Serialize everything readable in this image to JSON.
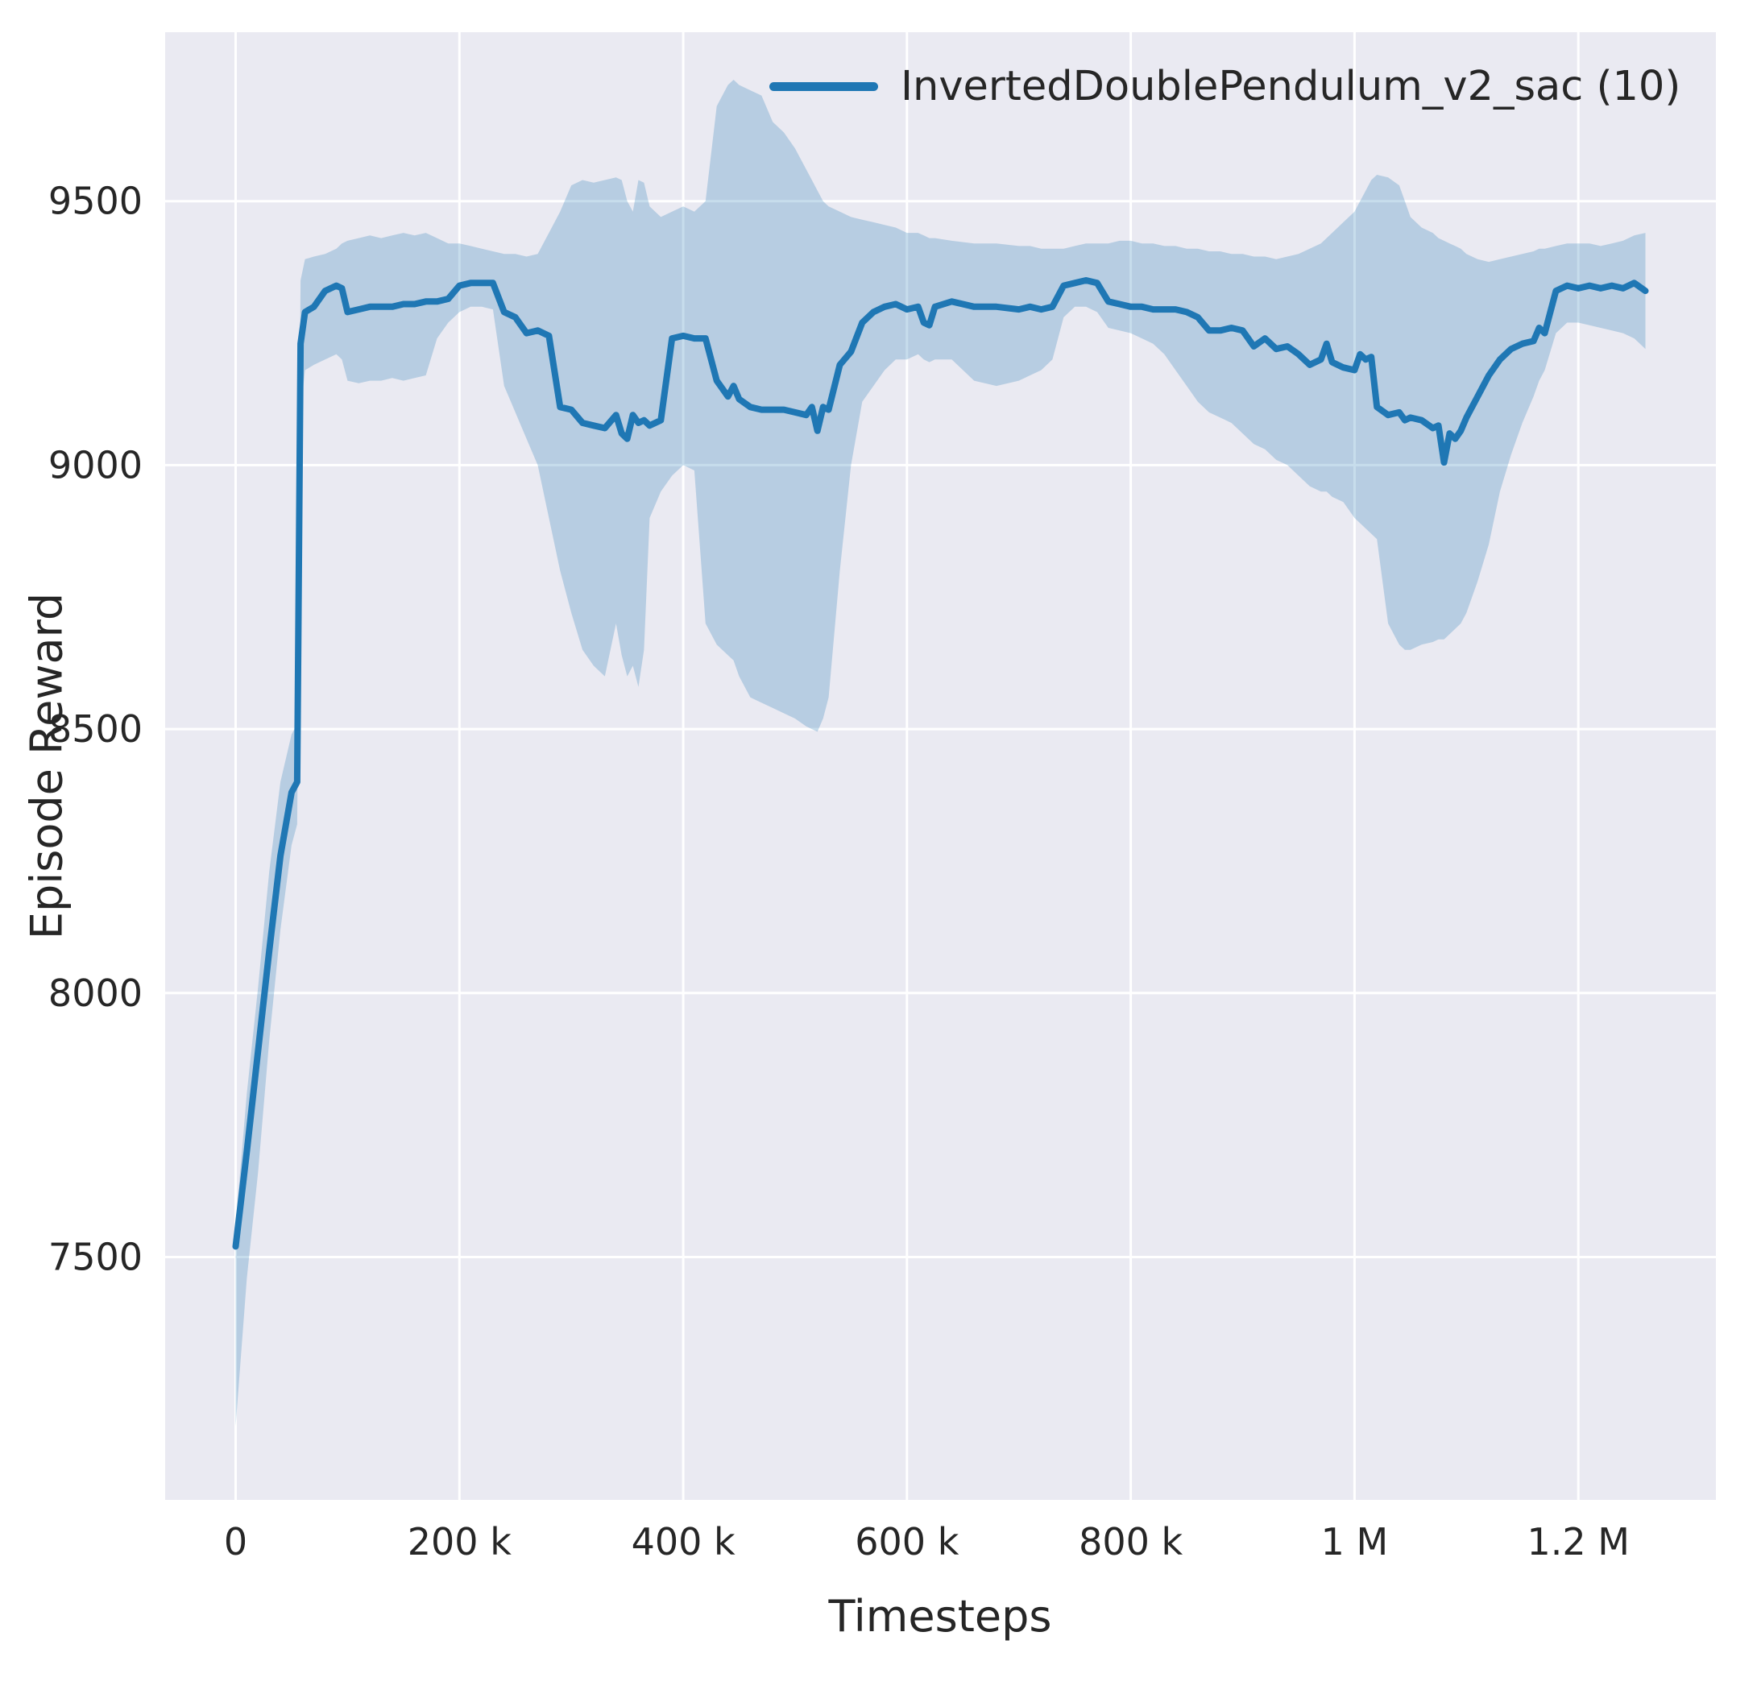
{
  "chart_data": {
    "type": "line",
    "title": "",
    "xlabel": "Timesteps",
    "ylabel": "Episode Reward",
    "legend_position": "upper right",
    "grid": true,
    "xlim": [
      -63000,
      1323000
    ],
    "ylim": [
      7040,
      9820
    ],
    "xticks": [
      {
        "value": 0,
        "label": "0"
      },
      {
        "value": 200000,
        "label": "200 k"
      },
      {
        "value": 400000,
        "label": "400 k"
      },
      {
        "value": 600000,
        "label": "600 k"
      },
      {
        "value": 800000,
        "label": "800 k"
      },
      {
        "value": 1000000,
        "label": "1 M"
      },
      {
        "value": 1200000,
        "label": "1.2 M"
      }
    ],
    "yticks": [
      {
        "value": 7500,
        "label": "7500"
      },
      {
        "value": 8000,
        "label": "8000"
      },
      {
        "value": 8500,
        "label": "8500"
      },
      {
        "value": 9000,
        "label": "9000"
      },
      {
        "value": 9500,
        "label": "9500"
      }
    ],
    "colors": {
      "line": "#1f77b4",
      "band": "#1f77b4",
      "band_opacity": 0.25,
      "plot_bg": "#eaeaf2",
      "grid": "#ffffff",
      "tick_text": "#262626",
      "label_text": "#262626",
      "page_bg": "#ffffff"
    },
    "series": [
      {
        "name": "InvertedDoublePendulum_v2_sac (10)",
        "color": "#1f77b4",
        "point_format": [
          "x_timesteps",
          "mean_reward",
          "band_lower",
          "band_upper"
        ],
        "points": [
          [
            0,
            7520,
            7180,
            7560
          ],
          [
            10000,
            7700,
            7460,
            7810
          ],
          [
            20000,
            7890,
            7660,
            8010
          ],
          [
            30000,
            8080,
            7910,
            8230
          ],
          [
            40000,
            8260,
            8120,
            8400
          ],
          [
            50000,
            8380,
            8280,
            8490
          ],
          [
            55000,
            8400,
            8320,
            8510
          ],
          [
            58000,
            9230,
            9100,
            9350
          ],
          [
            62000,
            9290,
            9180,
            9390
          ],
          [
            70000,
            9300,
            9190,
            9395
          ],
          [
            80000,
            9330,
            9200,
            9400
          ],
          [
            90000,
            9340,
            9210,
            9410
          ],
          [
            95000,
            9335,
            9200,
            9420
          ],
          [
            100000,
            9290,
            9160,
            9425
          ],
          [
            110000,
            9295,
            9155,
            9430
          ],
          [
            120000,
            9300,
            9160,
            9435
          ],
          [
            130000,
            9300,
            9160,
            9430
          ],
          [
            140000,
            9300,
            9165,
            9435
          ],
          [
            150000,
            9305,
            9160,
            9440
          ],
          [
            160000,
            9305,
            9165,
            9435
          ],
          [
            170000,
            9310,
            9170,
            9440
          ],
          [
            180000,
            9310,
            9240,
            9430
          ],
          [
            190000,
            9315,
            9270,
            9420
          ],
          [
            200000,
            9340,
            9290,
            9420
          ],
          [
            210000,
            9345,
            9300,
            9415
          ],
          [
            220000,
            9345,
            9300,
            9410
          ],
          [
            230000,
            9345,
            9295,
            9405
          ],
          [
            240000,
            9290,
            9150,
            9400
          ],
          [
            250000,
            9280,
            9100,
            9400
          ],
          [
            260000,
            9250,
            9050,
            9395
          ],
          [
            270000,
            9255,
            9000,
            9400
          ],
          [
            280000,
            9245,
            8900,
            9440
          ],
          [
            290000,
            9110,
            8800,
            9480
          ],
          [
            300000,
            9105,
            8720,
            9530
          ],
          [
            310000,
            9080,
            8650,
            9540
          ],
          [
            320000,
            9075,
            8620,
            9535
          ],
          [
            330000,
            9070,
            8600,
            9540
          ],
          [
            340000,
            9095,
            8700,
            9545
          ],
          [
            345000,
            9060,
            8640,
            9540
          ],
          [
            350000,
            9050,
            8600,
            9500
          ],
          [
            355000,
            9095,
            8620,
            9480
          ],
          [
            360000,
            9080,
            8580,
            9540
          ],
          [
            365000,
            9085,
            8650,
            9535
          ],
          [
            370000,
            9075,
            8900,
            9490
          ],
          [
            380000,
            9085,
            8950,
            9470
          ],
          [
            390000,
            9240,
            8980,
            9480
          ],
          [
            400000,
            9245,
            9000,
            9490
          ],
          [
            410000,
            9240,
            8990,
            9480
          ],
          [
            420000,
            9240,
            8700,
            9500
          ],
          [
            430000,
            9160,
            8660,
            9680
          ],
          [
            440000,
            9130,
            8640,
            9720
          ],
          [
            445000,
            9150,
            8630,
            9730
          ],
          [
            450000,
            9125,
            8600,
            9720
          ],
          [
            460000,
            9110,
            8560,
            9710
          ],
          [
            470000,
            9105,
            8550,
            9700
          ],
          [
            480000,
            9105,
            8540,
            9650
          ],
          [
            490000,
            9105,
            8530,
            9630
          ],
          [
            500000,
            9100,
            8520,
            9600
          ],
          [
            510000,
            9095,
            8505,
            9560
          ],
          [
            515000,
            9110,
            8500,
            9540
          ],
          [
            520000,
            9065,
            8495,
            9520
          ],
          [
            525000,
            9110,
            8520,
            9500
          ],
          [
            530000,
            9105,
            8560,
            9490
          ],
          [
            540000,
            9190,
            8800,
            9480
          ],
          [
            550000,
            9215,
            9000,
            9470
          ],
          [
            560000,
            9270,
            9120,
            9465
          ],
          [
            570000,
            9290,
            9150,
            9460
          ],
          [
            580000,
            9300,
            9180,
            9455
          ],
          [
            590000,
            9305,
            9200,
            9450
          ],
          [
            600000,
            9295,
            9200,
            9440
          ],
          [
            610000,
            9300,
            9210,
            9440
          ],
          [
            615000,
            9270,
            9200,
            9435
          ],
          [
            620000,
            9265,
            9195,
            9430
          ],
          [
            625000,
            9300,
            9200,
            9430
          ],
          [
            640000,
            9310,
            9200,
            9425
          ],
          [
            660000,
            9300,
            9160,
            9420
          ],
          [
            680000,
            9300,
            9150,
            9420
          ],
          [
            700000,
            9295,
            9160,
            9415
          ],
          [
            710000,
            9300,
            9170,
            9415
          ],
          [
            720000,
            9295,
            9180,
            9410
          ],
          [
            730000,
            9300,
            9200,
            9410
          ],
          [
            740000,
            9340,
            9280,
            9410
          ],
          [
            750000,
            9345,
            9300,
            9415
          ],
          [
            760000,
            9350,
            9300,
            9420
          ],
          [
            770000,
            9345,
            9290,
            9420
          ],
          [
            780000,
            9310,
            9260,
            9420
          ],
          [
            790000,
            9305,
            9255,
            9425
          ],
          [
            800000,
            9300,
            9250,
            9425
          ],
          [
            810000,
            9300,
            9240,
            9420
          ],
          [
            820000,
            9295,
            9230,
            9420
          ],
          [
            830000,
            9295,
            9210,
            9415
          ],
          [
            840000,
            9295,
            9180,
            9415
          ],
          [
            850000,
            9290,
            9150,
            9410
          ],
          [
            860000,
            9280,
            9120,
            9410
          ],
          [
            870000,
            9255,
            9100,
            9405
          ],
          [
            880000,
            9255,
            9090,
            9405
          ],
          [
            890000,
            9260,
            9080,
            9400
          ],
          [
            900000,
            9255,
            9060,
            9400
          ],
          [
            910000,
            9225,
            9040,
            9395
          ],
          [
            920000,
            9240,
            9030,
            9395
          ],
          [
            930000,
            9220,
            9010,
            9390
          ],
          [
            940000,
            9225,
            9000,
            9395
          ],
          [
            950000,
            9210,
            8980,
            9400
          ],
          [
            960000,
            9190,
            8960,
            9410
          ],
          [
            970000,
            9200,
            8950,
            9420
          ],
          [
            975000,
            9230,
            8950,
            9430
          ],
          [
            980000,
            9195,
            8940,
            9440
          ],
          [
            990000,
            9185,
            8930,
            9460
          ],
          [
            1000000,
            9180,
            8900,
            9480
          ],
          [
            1005000,
            9210,
            8890,
            9500
          ],
          [
            1010000,
            9200,
            8880,
            9520
          ],
          [
            1015000,
            9205,
            8870,
            9540
          ],
          [
            1020000,
            9110,
            8860,
            9550
          ],
          [
            1030000,
            9095,
            8700,
            9545
          ],
          [
            1040000,
            9100,
            8660,
            9530
          ],
          [
            1045000,
            9085,
            8650,
            9500
          ],
          [
            1050000,
            9090,
            8650,
            9470
          ],
          [
            1060000,
            9085,
            8660,
            9450
          ],
          [
            1070000,
            9070,
            8665,
            9440
          ],
          [
            1075000,
            9075,
            8670,
            9430
          ],
          [
            1080000,
            9005,
            8670,
            9425
          ],
          [
            1085000,
            9060,
            8680,
            9420
          ],
          [
            1090000,
            9050,
            8690,
            9415
          ],
          [
            1095000,
            9065,
            8700,
            9410
          ],
          [
            1100000,
            9090,
            8720,
            9400
          ],
          [
            1110000,
            9130,
            8780,
            9390
          ],
          [
            1120000,
            9170,
            8850,
            9385
          ],
          [
            1130000,
            9200,
            8950,
            9390
          ],
          [
            1140000,
            9220,
            9020,
            9395
          ],
          [
            1150000,
            9230,
            9080,
            9400
          ],
          [
            1160000,
            9235,
            9130,
            9405
          ],
          [
            1165000,
            9260,
            9160,
            9410
          ],
          [
            1170000,
            9250,
            9180,
            9410
          ],
          [
            1180000,
            9330,
            9250,
            9415
          ],
          [
            1190000,
            9340,
            9270,
            9420
          ],
          [
            1200000,
            9335,
            9270,
            9420
          ],
          [
            1210000,
            9340,
            9265,
            9420
          ],
          [
            1220000,
            9335,
            9260,
            9415
          ],
          [
            1230000,
            9340,
            9255,
            9420
          ],
          [
            1240000,
            9335,
            9250,
            9425
          ],
          [
            1250000,
            9345,
            9240,
            9435
          ],
          [
            1260000,
            9330,
            9220,
            9440
          ]
        ]
      }
    ]
  }
}
